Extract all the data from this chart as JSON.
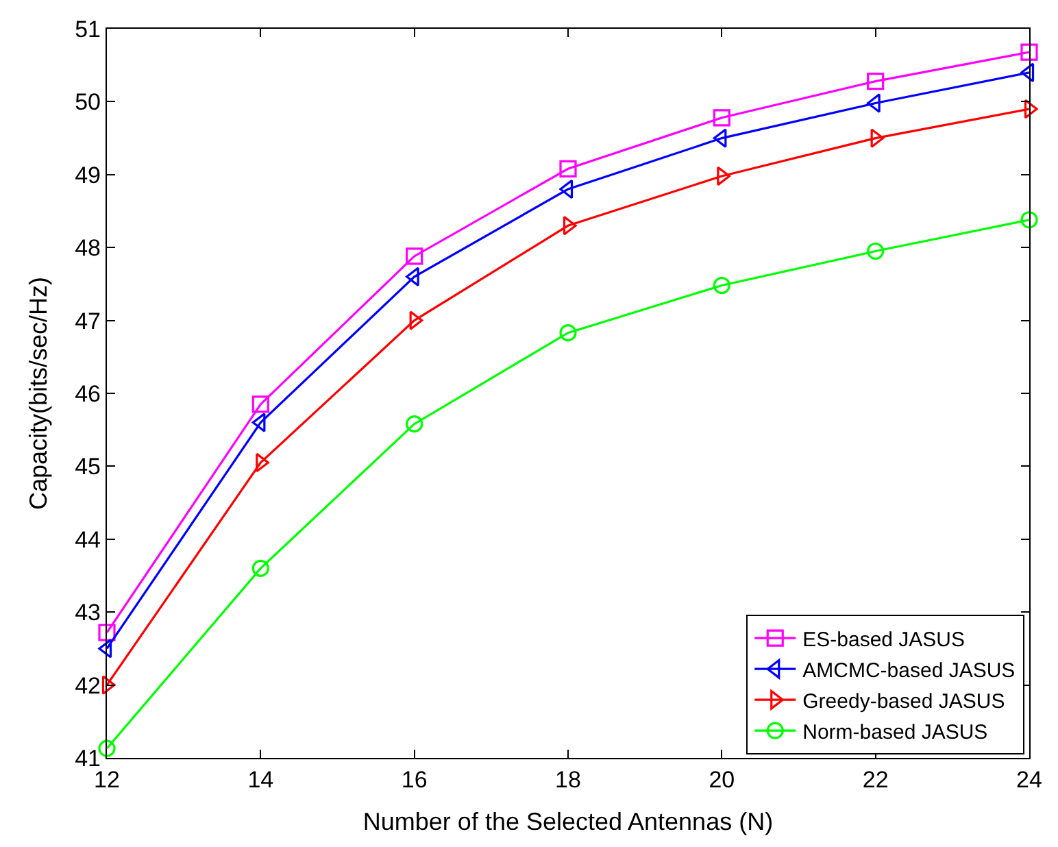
{
  "chart_data": {
    "type": "line",
    "xlabel": "Number of the Selected Antennas (N)",
    "ylabel": "Capacity(bits/sec/Hz)",
    "x": [
      12,
      14,
      16,
      18,
      20,
      22,
      24
    ],
    "series": [
      {
        "name": "ES-based JASUS",
        "color": "#ff00ff",
        "marker": "square",
        "values": [
          42.72,
          45.85,
          47.88,
          49.08,
          49.78,
          50.28,
          50.68
        ]
      },
      {
        "name": "AMCMC-based JASUS",
        "color": "#0000ff",
        "marker": "triangle-left",
        "values": [
          42.5,
          45.6,
          47.6,
          48.8,
          49.5,
          49.98,
          50.4
        ]
      },
      {
        "name": "Greedy-based JASUS",
        "color": "#ff0000",
        "marker": "triangle-right",
        "values": [
          42.0,
          45.05,
          47.0,
          48.3,
          48.98,
          49.5,
          49.9
        ]
      },
      {
        "name": "Norm-based JASUS",
        "color": "#00ff00",
        "marker": "circle",
        "values": [
          41.13,
          43.6,
          45.58,
          46.83,
          47.48,
          47.95,
          48.38
        ]
      }
    ],
    "xlim": [
      12,
      24
    ],
    "xticks": [
      12,
      14,
      16,
      18,
      20,
      22,
      24
    ],
    "ylim": [
      41,
      51
    ],
    "yticks": [
      41,
      42,
      43,
      44,
      45,
      46,
      47,
      48,
      49,
      50,
      51
    ],
    "legend": "bottom right",
    "line_style": "solid"
  }
}
